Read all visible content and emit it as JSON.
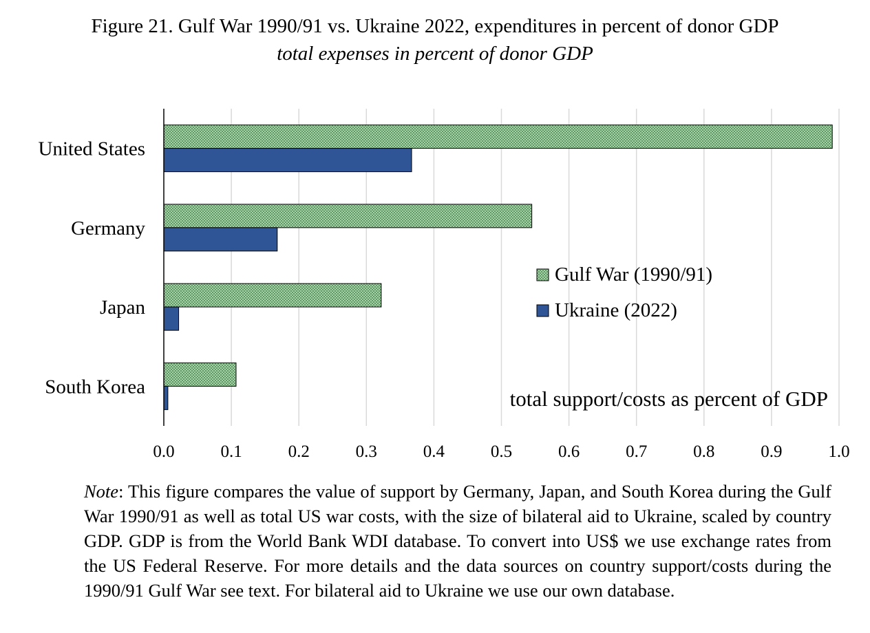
{
  "figure": {
    "title": "Figure 21. Gulf War 1990/91 vs. Ukraine 2022, expenditures in percent of donor GDP",
    "subtitle": "total expenses in percent of donor GDP"
  },
  "chart_data": {
    "type": "bar",
    "orientation": "horizontal",
    "categories": [
      "United States",
      "Germany",
      "Japan",
      "South Korea"
    ],
    "series": [
      {
        "name": "Gulf War (1990/91)",
        "values": [
          0.99,
          0.545,
          0.322,
          0.107
        ],
        "color": "#8fbf8f",
        "pattern": "dotted-green"
      },
      {
        "name": "Ukraine (2022)",
        "values": [
          0.367,
          0.168,
          0.022,
          0.006
        ],
        "color": "#2f5597"
      }
    ],
    "xlim": [
      0.0,
      1.0
    ],
    "xticks": [
      "0.0",
      "0.1",
      "0.2",
      "0.3",
      "0.4",
      "0.5",
      "0.6",
      "0.7",
      "0.8",
      "0.9",
      "1.0"
    ],
    "grid": "vertical",
    "legend_position": "center-right",
    "annotation": "total support/costs as percent of GDP"
  },
  "note": {
    "label": "Note",
    "text": ": This figure compares the value of support by Germany, Japan, and South Korea during the Gulf War 1990/91 as well as total US war costs, with the size of bilateral aid to Ukraine, scaled by country GDP. GDP is from the World Bank WDI database. To convert into US$ we use exchange rates from the US Federal Reserve. For more details and the data sources on country support/costs during the 1990/91 Gulf War see text. For bilateral aid to Ukraine we use our own database."
  }
}
